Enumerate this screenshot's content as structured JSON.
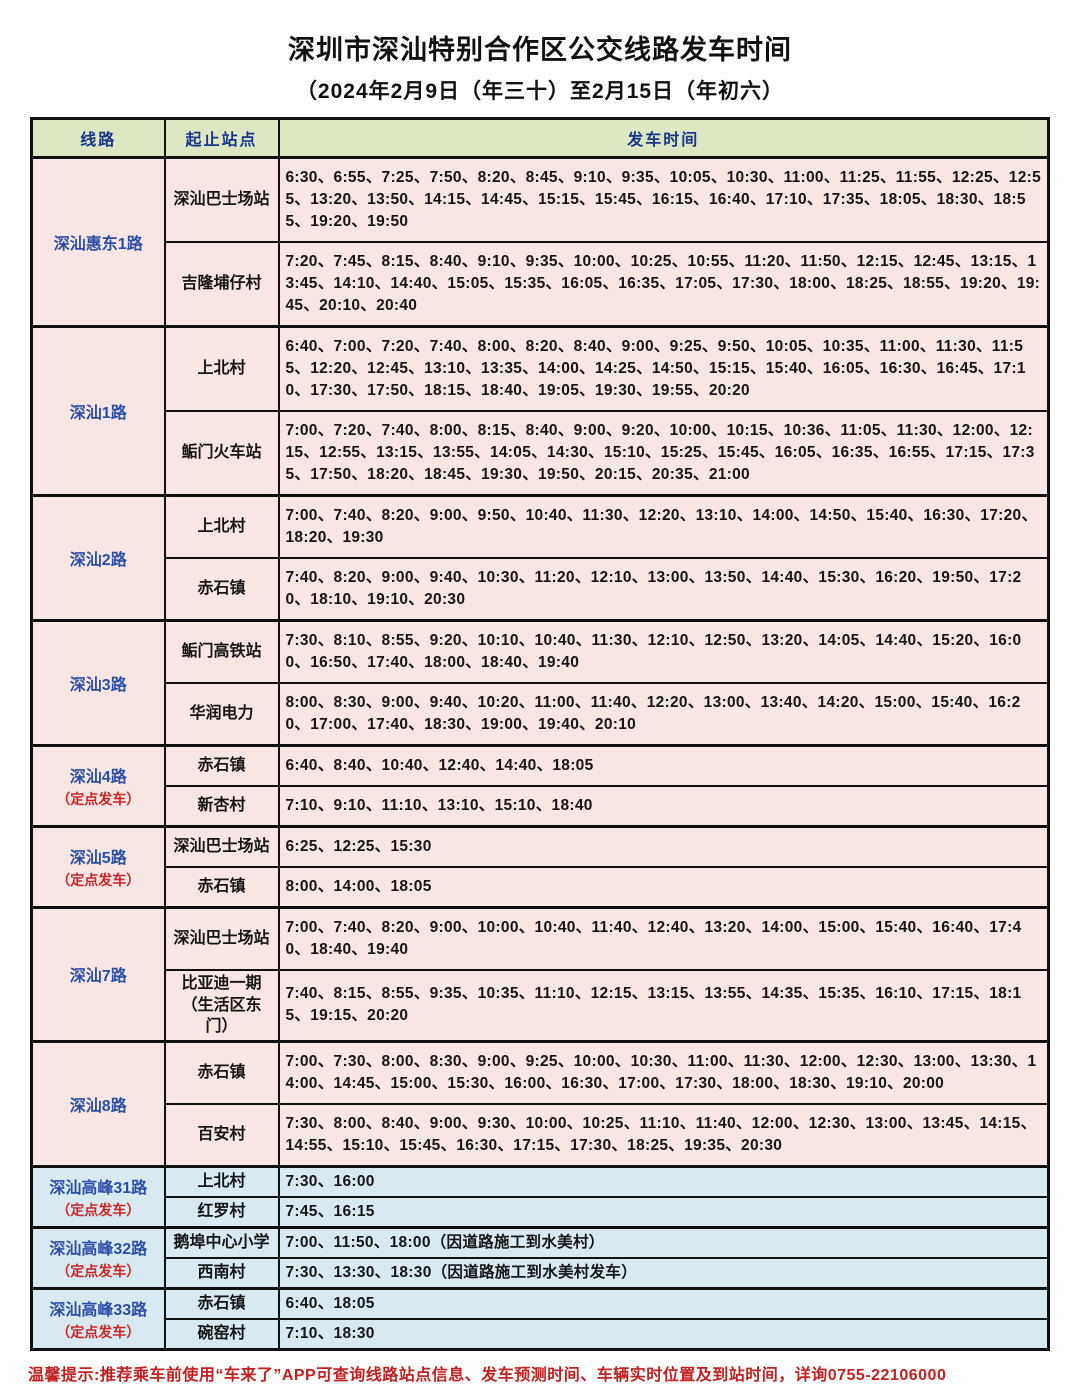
{
  "page": {
    "title": "深圳市深汕特别合作区公交线路发车时间",
    "subtitle": "（2024年2月9日（年三十）至2月15日（年初六）",
    "footer_note": "温馨提示:推荐乘车前使用“车来了”APP可查询线路站点信息、发车预测时间、车辆实时位置及到站时间，详询0755-22106000"
  },
  "colors": {
    "header_bg": "#dde7c3",
    "pink_row_bg": "#f7e6e4",
    "blue_row_bg": "#d9e9f2",
    "route_name_blue": "#2b4fa8",
    "fixed_departure_red": "#cf2424",
    "footer_red": "#c32020",
    "header_text_blue": "#16368c"
  },
  "table": {
    "headers": [
      "线路",
      "起止站点",
      "发车时间"
    ],
    "routes": [
      {
        "name": "深汕惠东1路",
        "note": "",
        "section": "pink",
        "stops": [
          {
            "station": "深汕巴士场站",
            "times": [
              "6:30",
              "6:55",
              "7:25",
              "7:50",
              "8:20",
              "8:45",
              "9:10",
              "9:35",
              "10:05",
              "10:30",
              "11:00",
              "11:25",
              "11:55",
              "12:25",
              "12:55",
              "13:20",
              "13:50",
              "14:15",
              "14:45",
              "15:15",
              "15:45",
              "16:15",
              "16:40",
              "17:10",
              "17:35",
              "18:05",
              "18:30",
              "18:55",
              "19:20",
              "19:50"
            ],
            "suffix": ""
          },
          {
            "station": "吉隆埔仔村",
            "times": [
              "7:20",
              "7:45",
              "8:15",
              "8:40",
              "9:10",
              "9:35",
              "10:00",
              "10:25",
              "10:55",
              "11:20",
              "11:50",
              "12:15",
              "12:45",
              "13:15",
              "13:45",
              "14:10",
              "14:40",
              "15:05",
              "15:35",
              "16:05",
              "16:35",
              "17:05",
              "17:30",
              "18:00",
              "18:25",
              "18:55",
              "19:20",
              "19:45",
              "20:10",
              "20:40"
            ],
            "suffix": ""
          }
        ]
      },
      {
        "name": "深汕1路",
        "note": "",
        "section": "pink",
        "stops": [
          {
            "station": "上北村",
            "times": [
              "6:40",
              "7:00",
              "7:20",
              "7:40",
              "8:00",
              "8:20",
              "8:40",
              "9:00",
              "9:25",
              "9:50",
              "10:05",
              "10:35",
              "11:00",
              "11:30",
              "11:55",
              "12:20",
              "12:45",
              "13:10",
              "13:35",
              "14:00",
              "14:25",
              "14:50",
              "15:15",
              "15:40",
              "16:05",
              "16:30",
              "16:45",
              "17:10",
              "17:30",
              "17:50",
              "18:15",
              "18:40",
              "19:05",
              "19:30",
              "19:55",
              "20:20"
            ],
            "suffix": ""
          },
          {
            "station": "鲘门火车站",
            "times": [
              "7:00",
              "7:20",
              "7:40",
              "8:00",
              "8:15",
              "8:40",
              "9:00",
              "9:20",
              "10:00",
              "10:15",
              "10:36",
              "11:05",
              "11:30",
              "12:00",
              "12:15",
              "12:55",
              "13:15",
              "13:55",
              "14:05",
              "14:30",
              "15:10",
              "15:25",
              "15:45",
              "16:05",
              "16:35",
              "16:55",
              "17:15",
              "17:35",
              "17:50",
              "18:20",
              "18:45",
              "19:30",
              "19:50",
              "20:15",
              "20:35",
              "21:00"
            ],
            "suffix": ""
          }
        ]
      },
      {
        "name": "深汕2路",
        "note": "",
        "section": "pink",
        "stops": [
          {
            "station": "上北村",
            "times": [
              "7:00",
              "7:40",
              "8:20",
              "9:00",
              "9:50",
              "10:40",
              "11:30",
              "12:20",
              "13:10",
              "14:00",
              "14:50",
              "15:40",
              "16:30",
              "17:20",
              "18:20",
              "19:30"
            ],
            "suffix": ""
          },
          {
            "station": "赤石镇",
            "times": [
              "7:40",
              "8:20",
              "9:00",
              "9:40",
              "10:30",
              "11:20",
              "12:10",
              "13:00",
              "13:50",
              "14:40",
              "15:30",
              "16:20",
              "19:50",
              "17:20",
              "18:10",
              "19:10",
              "20:30"
            ],
            "suffix": ""
          }
        ]
      },
      {
        "name": "深汕3路",
        "note": "",
        "section": "pink",
        "stops": [
          {
            "station": "鲘门高铁站",
            "times": [
              "7:30",
              "8:10",
              "8:55",
              "9:20",
              "10:10",
              "10:40",
              "11:30",
              "12:10",
              "12:50",
              "13:20",
              "14:05",
              "14:40",
              "15:20",
              "16:00",
              "16:50",
              "17:40",
              "18:00",
              "18:40",
              "19:40"
            ],
            "suffix": ""
          },
          {
            "station": "华润电力",
            "times": [
              "8:00",
              "8:30",
              "9:00",
              "9:40",
              "10:20",
              "11:00",
              "11:40",
              "12:20",
              "13:00",
              "13:40",
              "14:20",
              "15:00",
              "15:40",
              "16:20",
              "17:00",
              "17:40",
              "18:30",
              "19:00",
              "19:40",
              "20:10"
            ],
            "suffix": ""
          }
        ]
      },
      {
        "name": "深汕4路",
        "note": "（定点发车）",
        "section": "pink",
        "stops": [
          {
            "station": "赤石镇",
            "times": [
              "6:40",
              "8:40",
              "10:40",
              "12:40",
              "14:40",
              "18:05"
            ],
            "suffix": ""
          },
          {
            "station": "新杏村",
            "times": [
              "7:10",
              "9:10",
              "11:10",
              "13:10",
              "15:10",
              "18:40"
            ],
            "suffix": ""
          }
        ]
      },
      {
        "name": "深汕5路",
        "note": "（定点发车）",
        "section": "pink",
        "stops": [
          {
            "station": "深汕巴士场站",
            "times": [
              "6:25",
              "12:25",
              "15:30"
            ],
            "suffix": ""
          },
          {
            "station": "赤石镇",
            "times": [
              "8:00",
              "14:00",
              "18:05"
            ],
            "suffix": ""
          }
        ]
      },
      {
        "name": "深汕7路",
        "note": "",
        "section": "pink",
        "stops": [
          {
            "station": "深汕巴士场站",
            "times": [
              "7:00",
              "7:40",
              "8:20",
              "9:00",
              "10:00",
              "10:40",
              "11:40",
              "12:40",
              "13:20",
              "14:00",
              "15:00",
              "15:40",
              "16:40",
              "17:40",
              "18:40",
              "19:40"
            ],
            "suffix": ""
          },
          {
            "station": "比亚迪一期（生活区东门）",
            "times": [
              "7:40",
              "8:15",
              "8:55",
              "9:35",
              "10:35",
              "11:10",
              "12:15",
              "13:15",
              "13:55",
              "14:35",
              "15:35",
              "16:10",
              "17:15",
              "18:15",
              "19:15",
              "20:20"
            ],
            "suffix": ""
          }
        ]
      },
      {
        "name": "深汕8路",
        "note": "",
        "section": "pink",
        "stops": [
          {
            "station": "赤石镇",
            "times": [
              "7:00",
              "7:30",
              "8:00",
              "8:30",
              "9:00",
              "9:25",
              "10:00",
              "10:30",
              "11:00",
              "11:30",
              "12:00",
              "12:30",
              "13:00",
              "13:30",
              "14:00",
              "14:45",
              "15:00",
              "15:30",
              "16:00",
              "16:30",
              "17:00",
              "17:30",
              "18:00",
              "18:30",
              "19:10",
              "20:00"
            ],
            "suffix": ""
          },
          {
            "station": "百安村",
            "times": [
              "7:30",
              "8:00",
              "8:40",
              "9:00",
              "9:30",
              "10:00",
              "10:25",
              "11:10",
              "11:40",
              "12:00",
              "12:30",
              "13:00",
              "13:45",
              "14:15",
              "14:55",
              "15:10",
              "15:45",
              "16:30",
              "17:15",
              "17:30",
              "18:25",
              "19:35",
              "20:30"
            ],
            "suffix": ""
          }
        ]
      },
      {
        "name": "深汕高峰31路",
        "note": "（定点发车）",
        "section": "blue",
        "stops": [
          {
            "station": "上北村",
            "times": [
              "7:30",
              "16:00"
            ],
            "suffix": ""
          },
          {
            "station": "红罗村",
            "times": [
              "7:45",
              "16:15"
            ],
            "suffix": ""
          }
        ]
      },
      {
        "name": "深汕高峰32路",
        "note": "（定点发车）",
        "section": "blue",
        "stops": [
          {
            "station": "鹅埠中心小学",
            "times": [
              "7:00",
              "11:50",
              "18:00"
            ],
            "suffix": "（因道路施工到水美村）"
          },
          {
            "station": "西南村",
            "times": [
              "7:30",
              "13:30",
              "18:30"
            ],
            "suffix": "（因道路施工到水美村发车）"
          }
        ]
      },
      {
        "name": "深汕高峰33路",
        "note": "（定点发车）",
        "section": "blue",
        "stops": [
          {
            "station": "赤石镇",
            "times": [
              "6:40",
              "18:05"
            ],
            "suffix": ""
          },
          {
            "station": "碗窑村",
            "times": [
              "7:10",
              "18:30"
            ],
            "suffix": ""
          }
        ]
      }
    ]
  }
}
